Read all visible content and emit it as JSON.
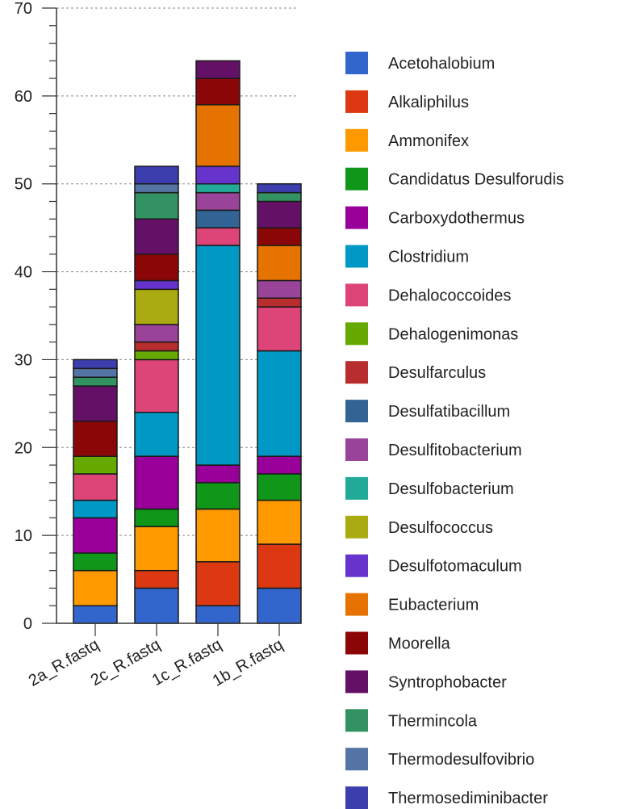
{
  "chart_data": {
    "type": "bar",
    "stacked": true,
    "categories": [
      "2a_R.fastq",
      "2c_R.fastq",
      "1c_R.fastq",
      "1b_R.fastq"
    ],
    "ylim": [
      0,
      70
    ],
    "yticks": [
      0,
      10,
      20,
      30,
      40,
      50,
      60,
      70
    ],
    "grid": true,
    "legend_position": "right",
    "series": [
      {
        "name": "Acetohalobium",
        "color": "#3366cc",
        "values": [
          2,
          4,
          2,
          4
        ]
      },
      {
        "name": "Alkaliphilus",
        "color": "#dc3912",
        "values": [
          0,
          2,
          5,
          5
        ]
      },
      {
        "name": "Ammonifex",
        "color": "#ff9900",
        "values": [
          4,
          5,
          6,
          5
        ]
      },
      {
        "name": "Candidatus Desulforudis",
        "color": "#109618",
        "values": [
          2,
          2,
          3,
          3
        ]
      },
      {
        "name": "Carboxydothermus",
        "color": "#990099",
        "values": [
          4,
          6,
          2,
          2
        ]
      },
      {
        "name": "Clostridium",
        "color": "#0099c6",
        "values": [
          2,
          5,
          25,
          12
        ]
      },
      {
        "name": "Dehalococcoides",
        "color": "#dd4477",
        "values": [
          3,
          6,
          2,
          5
        ]
      },
      {
        "name": "Dehalogenimonas",
        "color": "#66aa00",
        "values": [
          2,
          1,
          0,
          0
        ]
      },
      {
        "name": "Desulfarculus",
        "color": "#b82e2e",
        "values": [
          0,
          1,
          0,
          1
        ]
      },
      {
        "name": "Desulfatibacillum",
        "color": "#316395",
        "values": [
          0,
          0,
          2,
          0
        ]
      },
      {
        "name": "Desulfitobacterium",
        "color": "#994499",
        "values": [
          0,
          2,
          2,
          2
        ]
      },
      {
        "name": "Desulfobacterium",
        "color": "#22aa99",
        "values": [
          0,
          0,
          1,
          0
        ]
      },
      {
        "name": "Desulfococcus",
        "color": "#aaaa11",
        "values": [
          0,
          4,
          0,
          0
        ]
      },
      {
        "name": "Desulfotomaculum",
        "color": "#6633cc",
        "values": [
          0,
          1,
          2,
          0
        ]
      },
      {
        "name": "Eubacterium",
        "color": "#e67300",
        "values": [
          0,
          0,
          7,
          4
        ]
      },
      {
        "name": "Moorella",
        "color": "#8b0707",
        "values": [
          4,
          3,
          3,
          2
        ]
      },
      {
        "name": "Syntrophobacter",
        "color": "#651067",
        "values": [
          4,
          4,
          2,
          3
        ]
      },
      {
        "name": "Thermincola",
        "color": "#329262",
        "values": [
          1,
          3,
          0,
          1
        ]
      },
      {
        "name": "Thermodesulfovibrio",
        "color": "#5574a6",
        "values": [
          1,
          1,
          0,
          0
        ]
      },
      {
        "name": "Thermosediminibacter",
        "color": "#3b3eac",
        "values": [
          1,
          2,
          0,
          1
        ]
      }
    ]
  }
}
